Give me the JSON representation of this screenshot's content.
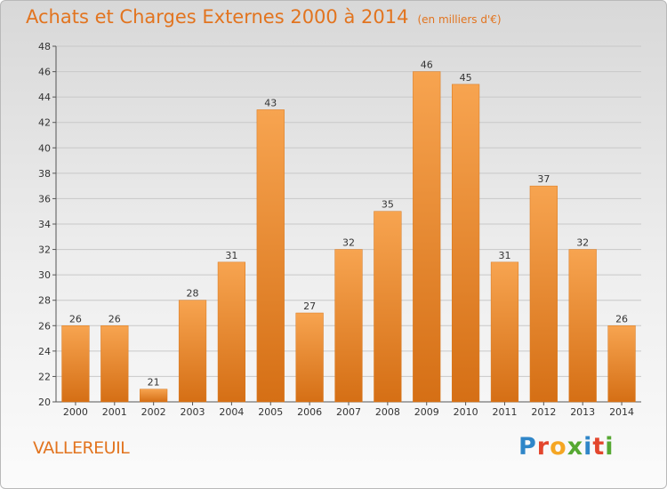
{
  "chart_data": {
    "type": "bar",
    "title": "Achats et Charges Externes 2000 à 2014",
    "subtitle": "(en milliers d'€)",
    "categories": [
      "2000",
      "2001",
      "2002",
      "2003",
      "2004",
      "2005",
      "2006",
      "2007",
      "2008",
      "2009",
      "2010",
      "2011",
      "2012",
      "2013",
      "2014"
    ],
    "values": [
      26,
      26,
      21,
      28,
      31,
      43,
      27,
      32,
      35,
      46,
      45,
      31,
      37,
      32,
      26
    ],
    "ylim": [
      20,
      48
    ],
    "yticks": [
      20,
      22,
      24,
      26,
      28,
      30,
      32,
      34,
      36,
      38,
      40,
      42,
      44,
      46,
      48
    ],
    "xlabel": "",
    "ylabel": "",
    "grid": true,
    "bar_color": "#f0922f"
  },
  "place_label": "VALLEREUIL",
  "brand": {
    "letters": [
      "P",
      "r",
      "o",
      "x",
      "i",
      "t",
      "i"
    ],
    "colors": [
      "#2f86c8",
      "#e3462d",
      "#f5a623",
      "#56a832",
      "#2f86c8",
      "#e3462d",
      "#56a832"
    ]
  }
}
